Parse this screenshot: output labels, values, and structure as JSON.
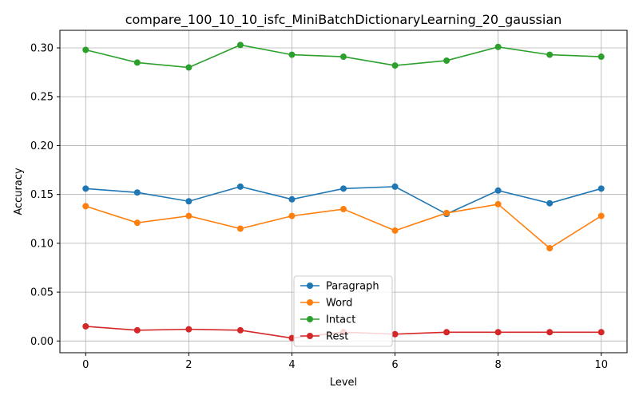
{
  "chart_data": {
    "type": "line",
    "title": "compare_100_10_10_isfc_MiniBatchDictionaryLearning_20_gaussian",
    "xlabel": "Level",
    "ylabel": "Accuracy",
    "xlim": [
      -0.5,
      10.5
    ],
    "ylim": [
      -0.012,
      0.318
    ],
    "xticks": [
      0,
      2,
      4,
      6,
      8,
      10
    ],
    "xtick_labels": [
      "0",
      "2",
      "4",
      "6",
      "8",
      "10"
    ],
    "yticks": [
      0.0,
      0.05,
      0.1,
      0.15,
      0.2,
      0.25,
      0.3
    ],
    "ytick_labels": [
      "0.00",
      "0.05",
      "0.10",
      "0.15",
      "0.20",
      "0.25",
      "0.30"
    ],
    "grid": true,
    "legend_position": "lower center",
    "x": [
      0,
      1,
      2,
      3,
      4,
      5,
      6,
      7,
      8,
      9,
      10
    ],
    "series": [
      {
        "name": "Paragraph",
        "color": "#1f77b4",
        "values": [
          0.156,
          0.152,
          0.143,
          0.158,
          0.145,
          0.156,
          0.158,
          0.13,
          0.154,
          0.141,
          0.156
        ]
      },
      {
        "name": "Word",
        "color": "#ff7f0e",
        "values": [
          0.138,
          0.121,
          0.128,
          0.115,
          0.128,
          0.135,
          0.113,
          0.131,
          0.14,
          0.095,
          0.128
        ]
      },
      {
        "name": "Intact",
        "color": "#2ca02c",
        "values": [
          0.298,
          0.285,
          0.28,
          0.303,
          0.293,
          0.291,
          0.282,
          0.287,
          0.301,
          0.293,
          0.291
        ]
      },
      {
        "name": "Rest",
        "color": "#d62728",
        "values": [
          0.015,
          0.011,
          0.012,
          0.011,
          0.003,
          0.009,
          0.007,
          0.009,
          0.009,
          0.009,
          0.009
        ]
      }
    ]
  }
}
